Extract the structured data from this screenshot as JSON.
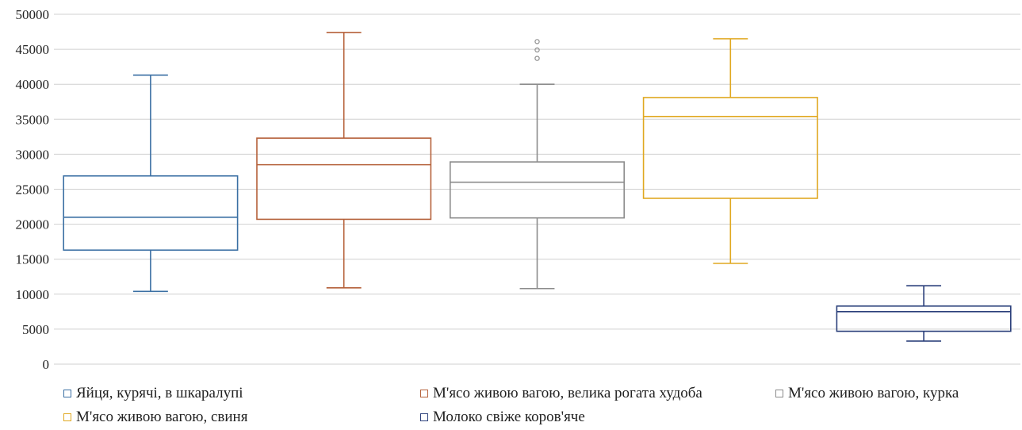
{
  "chart_data": {
    "type": "box",
    "ylim": [
      0,
      50000
    ],
    "y_ticks": [
      0,
      5000,
      10000,
      15000,
      20000,
      25000,
      30000,
      35000,
      40000,
      45000,
      50000
    ],
    "grid": true,
    "legend_position": "bottom",
    "series": [
      {
        "name": "Яйця, курячі, в шкаралупі",
        "color": "#3a6fa3",
        "whisker_low": 10400,
        "q1": 16300,
        "median": 21000,
        "q3": 26900,
        "whisker_high": 41300,
        "outliers": []
      },
      {
        "name": "М'ясо живою вагою, велика рогата худоба",
        "color": "#b5613a",
        "whisker_low": 10900,
        "q1": 20700,
        "median": 28500,
        "q3": 32300,
        "whisker_high": 47400,
        "outliers": []
      },
      {
        "name": "М'ясо живою вагою, курка",
        "color": "#8c8c8c",
        "whisker_low": 10800,
        "q1": 20900,
        "median": 26000,
        "q3": 28900,
        "whisker_high": 40000,
        "outliers": [
          43700,
          44900,
          46100
        ]
      },
      {
        "name": "М'ясо живою вагою, свиня",
        "color": "#e0a820",
        "whisker_low": 14400,
        "q1": 23700,
        "median": 35400,
        "q3": 38100,
        "whisker_high": 46500,
        "outliers": []
      },
      {
        "name": "Молоко свіже коров'яче",
        "color": "#2a3f7a",
        "whisker_low": 3300,
        "q1": 4700,
        "median": 7500,
        "q3": 8300,
        "whisker_high": 11200,
        "outliers": []
      }
    ]
  }
}
